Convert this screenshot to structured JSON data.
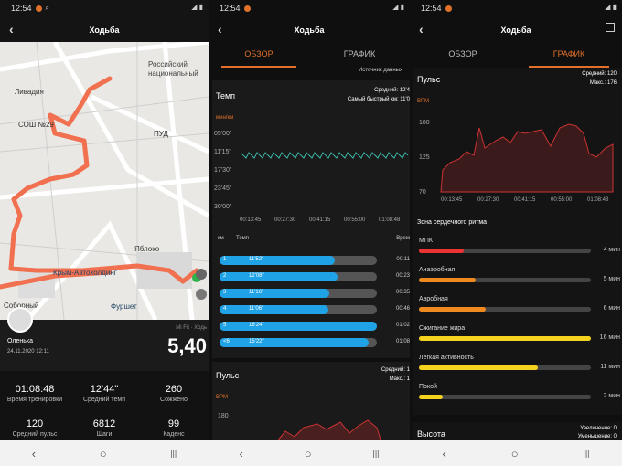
{
  "status_time": "12:54",
  "colors": {
    "accent": "#e0702a",
    "route": "#f07050",
    "pace_bar": "#1fa3e6",
    "zone_red": "#e33",
    "zone_orange": "#f08a1e",
    "zone_yellow": "#f5d21e"
  },
  "panel1": {
    "title": "Ходьба",
    "map_labels": [
      "Российский национальный",
      "Ливадия",
      "СОШ №29",
      "ПУД",
      "Крым-Автохолдинг",
      "Яблоко",
      "Фуршет",
      "Соборный"
    ],
    "user_name": "Оленька",
    "user_datetime": "24.11.2020 12:11",
    "source": "Mi Fit · Ходь",
    "distance": "5,40",
    "stats": [
      {
        "value": "01:08:48",
        "label": "Время тренировки"
      },
      {
        "value": "12'44\"",
        "label": "Средний темп"
      },
      {
        "value": "260",
        "label": "Сожжено"
      },
      {
        "value": "120",
        "label": "Средний пульс"
      },
      {
        "value": "6812",
        "label": "Шаги"
      },
      {
        "value": "99",
        "label": "Каденс"
      }
    ]
  },
  "panel2": {
    "title": "Ходьба",
    "tabs": [
      "ОБЗОР",
      "ГРАФИК"
    ],
    "source_label": "Источник данных",
    "pace_title": "Темп",
    "pace_avg": "Средний: 12'4",
    "pace_fast": "Самый быстрый км: 11'0",
    "pace_unit": "мин/км",
    "pace_y_ticks": [
      "05'00\"",
      "11'15\"",
      "17'30\"",
      "23'45\"",
      "30'00\""
    ],
    "x_ticks": [
      "00:13:45",
      "00:27:30",
      "00:41:15",
      "00:55:00",
      "01:08:48"
    ],
    "split_head": {
      "km": "км",
      "pace": "Темп",
      "time": "Врем"
    },
    "splits": [
      {
        "km": "1",
        "pace": "11'52\"",
        "time": "00:11",
        "fill": 0.73
      },
      {
        "km": "2",
        "pace": "12'08\"",
        "time": "00:23",
        "fill": 0.75
      },
      {
        "km": "3",
        "pace": "11'16\"",
        "time": "00:35",
        "fill": 0.7
      },
      {
        "km": "4",
        "pace": "11'06\"",
        "time": "00:46",
        "fill": 0.69
      },
      {
        "km": "5",
        "pace": "16'24\"",
        "time": "01:02",
        "fill": 1.0
      },
      {
        "km": "<6",
        "pace": "15'22\"",
        "time": "01:08",
        "fill": 0.95
      }
    ],
    "pulse_title": "Пульс",
    "pulse_avg": "Средний: 1",
    "pulse_max": "Макс.: 1",
    "pulse_unit": "BPM",
    "pulse_y_tick": "180"
  },
  "panel3": {
    "title": "Ходьба",
    "tabs": [
      "ОБЗОР",
      "ГРАФИК"
    ],
    "pulse_title": "Пульс",
    "pulse_avg": "Средний: 120",
    "pulse_max": "Макс.: 176",
    "pulse_unit": "BPM",
    "pulse_y_ticks": [
      "180",
      "125",
      "70"
    ],
    "x_ticks": [
      "00:13:45",
      "00:27:30",
      "00:41:15",
      "00:55:00",
      "01:08:48"
    ],
    "zone_title": "Зона сердечного ритма",
    "zones": [
      {
        "name": "МПК",
        "mins": "4 мин",
        "fill": 0.26,
        "color": "#e33"
      },
      {
        "name": "Анаэробная",
        "mins": "5 мин",
        "fill": 0.33,
        "color": "#f08a1e"
      },
      {
        "name": "Аэробная",
        "mins": "6 мин",
        "fill": 0.39,
        "color": "#f08a1e"
      },
      {
        "name": "Сжигание жира",
        "mins": "16 мин",
        "fill": 1.0,
        "color": "#f5d21e"
      },
      {
        "name": "Легкая активность",
        "mins": "11 мин",
        "fill": 0.69,
        "color": "#f5d21e"
      },
      {
        "name": "Покой",
        "mins": "2 мин",
        "fill": 0.14,
        "color": "#f5d21e"
      }
    ],
    "height_title": "Высота",
    "height_up": "Увеличение: 0",
    "height_down": "Уменьшение: 0"
  },
  "nav": {
    "back": "‹",
    "home": "○",
    "recent": "|||"
  }
}
